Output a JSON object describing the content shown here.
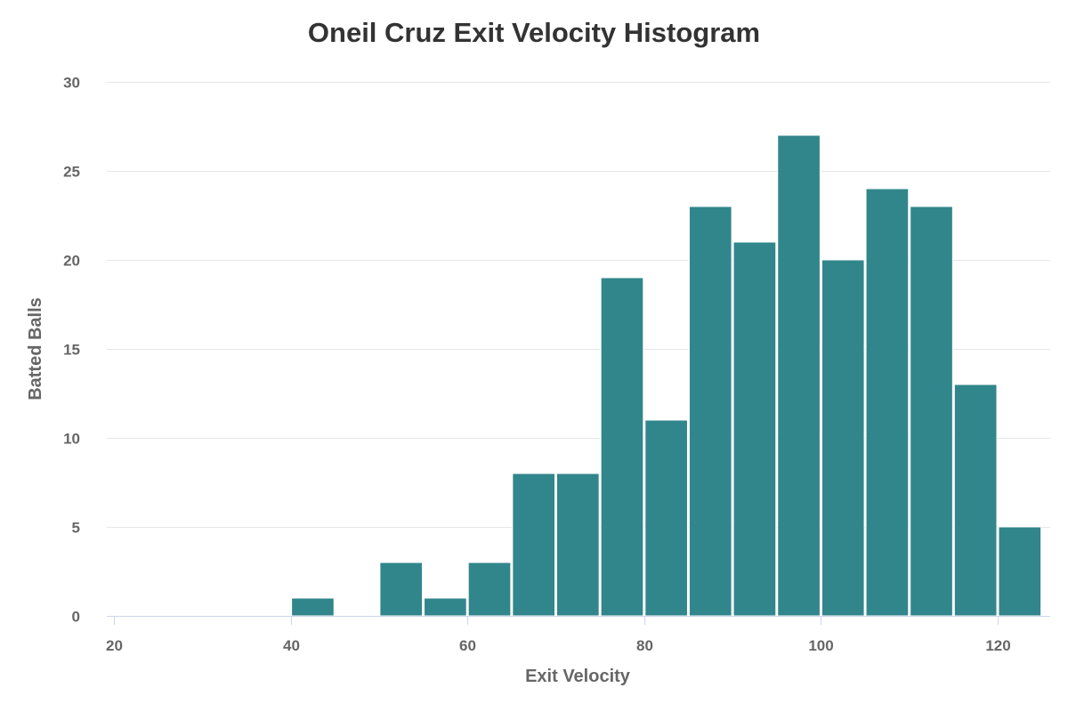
{
  "chart_data": {
    "type": "bar",
    "title": "Oneil Cruz Exit Velocity Histogram",
    "xlabel": "Exit Velocity",
    "ylabel": "Batted Balls",
    "bin_width": 5,
    "bin_starts": [
      20,
      25,
      30,
      35,
      40,
      45,
      50,
      55,
      60,
      65,
      70,
      75,
      80,
      85,
      90,
      95,
      100,
      105,
      110,
      115,
      120
    ],
    "values": [
      0,
      0,
      0,
      0,
      1,
      0,
      3,
      1,
      3,
      8,
      8,
      19,
      11,
      23,
      21,
      27,
      20,
      24,
      23,
      13,
      5
    ],
    "xlim": [
      19,
      125
    ],
    "ylim": [
      0,
      30
    ],
    "x_ticks": [
      20,
      40,
      60,
      80,
      100,
      120
    ],
    "y_ticks": [
      0,
      5,
      10,
      15,
      20,
      25,
      30
    ],
    "bar_color": "#31868b",
    "grid": true,
    "legend": "none"
  }
}
